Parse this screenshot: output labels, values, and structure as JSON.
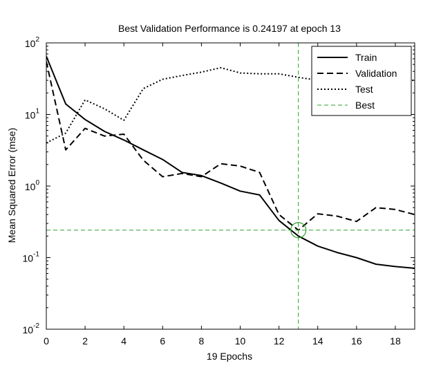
{
  "chart_data": {
    "type": "line",
    "title": "Best Validation Performance is 0.24197 at epoch 13",
    "xlabel": "19 Epochs",
    "ylabel": "Mean Squared Error  (mse)",
    "xlim": [
      0,
      19
    ],
    "ylim": [
      0.01,
      100
    ],
    "yscale": "log",
    "grid": false,
    "legend_position": "top-right",
    "x_ticks": [
      "0",
      "2",
      "4",
      "6",
      "8",
      "10",
      "12",
      "14",
      "16",
      "18"
    ],
    "y_ticks": [
      {
        "base": "10",
        "exp": "-2"
      },
      {
        "base": "10",
        "exp": "-1"
      },
      {
        "base": "10",
        "exp": "0"
      },
      {
        "base": "10",
        "exp": "1"
      },
      {
        "base": "10",
        "exp": "2"
      }
    ],
    "x": [
      0,
      1,
      2,
      3,
      4,
      5,
      6,
      7,
      8,
      9,
      10,
      11,
      12,
      13,
      14,
      15,
      16,
      17,
      18,
      19
    ],
    "series": [
      {
        "name": "Train",
        "style": "solid",
        "color": "#000000",
        "values": [
          65,
          14,
          8.5,
          5.8,
          4.4,
          3.2,
          2.35,
          1.55,
          1.4,
          1.1,
          0.85,
          0.75,
          0.33,
          0.2,
          0.145,
          0.118,
          0.1,
          0.081,
          0.075,
          0.071
        ]
      },
      {
        "name": "Validation",
        "style": "dashed",
        "color": "#000000",
        "values": [
          55,
          3.2,
          6.4,
          5.0,
          5.3,
          2.3,
          1.35,
          1.5,
          1.35,
          2.05,
          1.9,
          1.55,
          0.4,
          0.24197,
          0.41,
          0.38,
          0.32,
          0.5,
          0.47,
          0.4
        ]
      },
      {
        "name": "Test",
        "style": "dotted",
        "color": "#000000",
        "values": [
          4.0,
          5.5,
          16,
          12,
          8.3,
          23,
          31,
          35,
          39,
          45,
          38,
          37,
          37,
          33,
          30,
          32,
          31,
          30,
          30,
          30
        ]
      }
    ],
    "best": {
      "name": "Best",
      "epoch": 13,
      "value": 0.24197,
      "color": "#2ca02c"
    }
  }
}
